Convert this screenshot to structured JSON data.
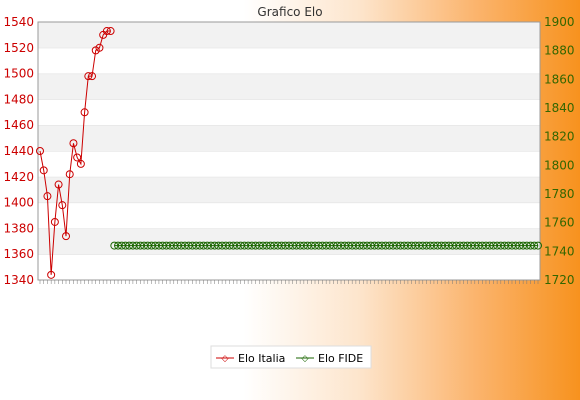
{
  "chart_data": {
    "type": "line",
    "title": "Grafico Elo",
    "y_left": {
      "ylim": [
        1340,
        1540
      ],
      "ticks": [
        1340,
        1360,
        1380,
        1400,
        1420,
        1440,
        1460,
        1480,
        1500,
        1520,
        1540
      ]
    },
    "y_right": {
      "ylim": [
        1720,
        1900
      ],
      "ticks": [
        1720,
        1740,
        1760,
        1780,
        1800,
        1820,
        1840,
        1860,
        1880,
        1900
      ]
    },
    "grid": "horizontal bands",
    "legend_position": "bottom",
    "x_count": 135,
    "series": [
      {
        "name": "Elo Italia",
        "axis": "left",
        "color": "#cc0000",
        "values": [
          1440,
          1425,
          1405,
          1344,
          1385,
          1414,
          1398,
          1374,
          1422,
          1446,
          1435,
          1430,
          1470,
          1498,
          1498,
          1518,
          1520,
          1530,
          1533,
          1533
        ]
      },
      {
        "name": "Elo FIDE",
        "axis": "right",
        "color": "#1a6600",
        "start_index": 20,
        "values": [
          1744,
          1744,
          1744,
          1744,
          1744,
          1744,
          1744,
          1744,
          1744,
          1744,
          1744,
          1744,
          1744,
          1744,
          1744,
          1744,
          1744,
          1744,
          1744,
          1744,
          1744,
          1744,
          1744,
          1744,
          1744,
          1744,
          1744,
          1744,
          1744,
          1744,
          1744,
          1744,
          1744,
          1744,
          1744,
          1744,
          1744,
          1744,
          1744,
          1744,
          1744,
          1744,
          1744,
          1744,
          1744,
          1744,
          1744,
          1744,
          1744,
          1744,
          1744,
          1744,
          1744,
          1744,
          1744,
          1744,
          1744,
          1744,
          1744,
          1744,
          1744,
          1744,
          1744,
          1744,
          1744,
          1744,
          1744,
          1744,
          1744,
          1744,
          1744,
          1744,
          1744,
          1744,
          1744,
          1744,
          1744,
          1744,
          1744,
          1744,
          1744,
          1744,
          1744,
          1744,
          1744,
          1744,
          1744,
          1744,
          1744,
          1744,
          1744,
          1744,
          1744,
          1744,
          1744,
          1744,
          1744,
          1744,
          1744,
          1744,
          1744,
          1744,
          1744,
          1744,
          1744,
          1744,
          1744,
          1744,
          1744,
          1744,
          1744,
          1744,
          1744,
          1744,
          1744
        ]
      }
    ]
  },
  "legend": {
    "italia": "Elo Italia",
    "fide": "Elo FIDE"
  }
}
